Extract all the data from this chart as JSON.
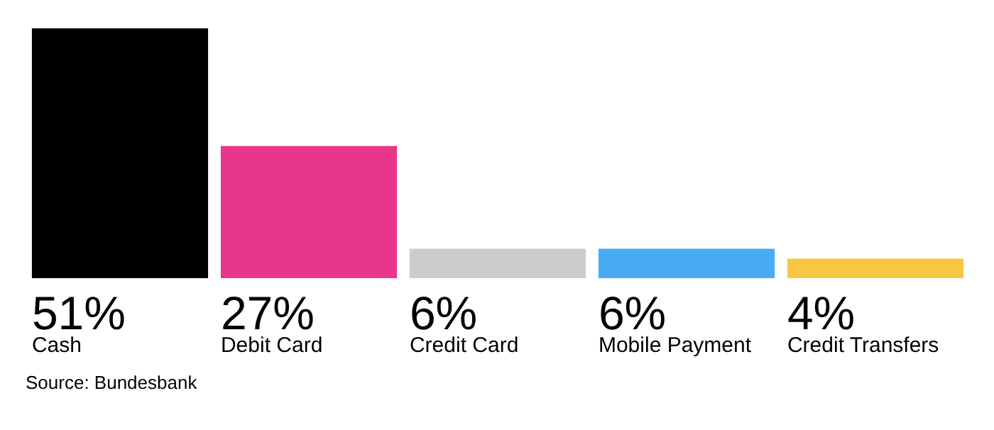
{
  "chart_data": {
    "type": "bar",
    "categories": [
      "Cash",
      "Debit Card",
      "Credit Card",
      "Mobile Payment",
      "Credit Transfers"
    ],
    "values": [
      51,
      27,
      6,
      6,
      4
    ],
    "value_labels": [
      "51%",
      "27%",
      "6%",
      "6%",
      "4%"
    ],
    "colors": [
      "#000000",
      "#e8368b",
      "#cccccc",
      "#4aabf5",
      "#f7c744"
    ],
    "annotations": [
      "Source: Bundesbank"
    ]
  }
}
